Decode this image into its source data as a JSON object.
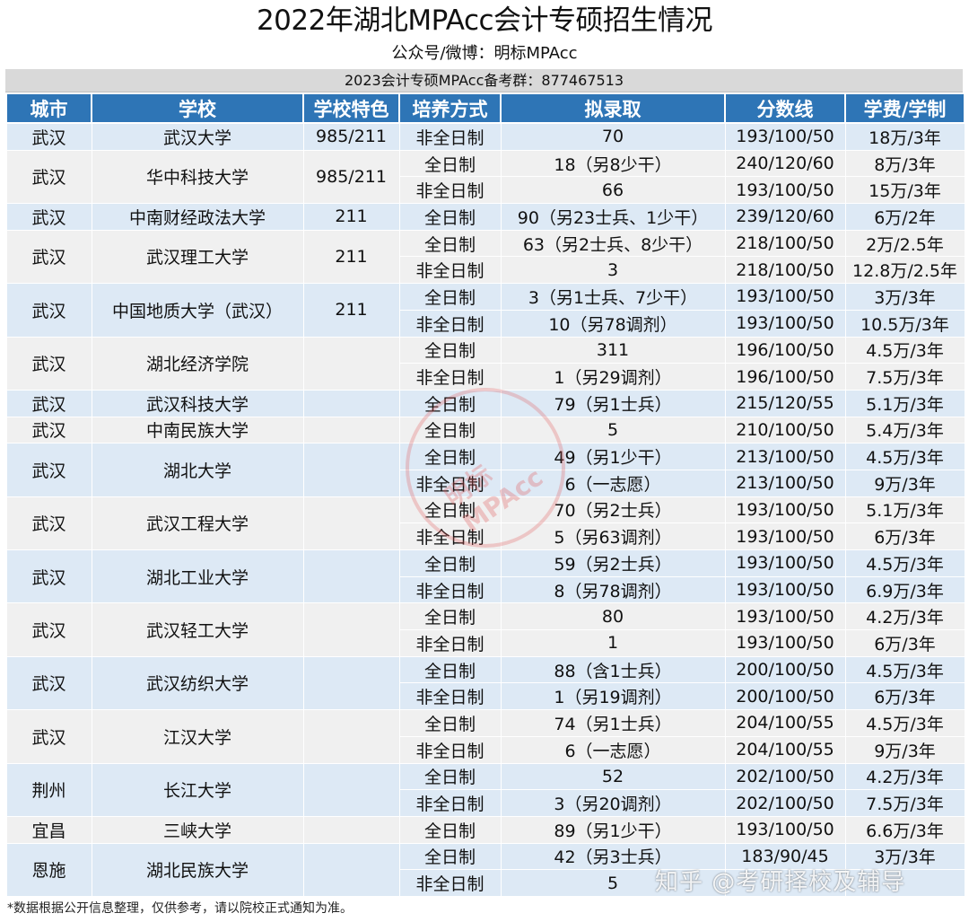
{
  "title": "2022年湖北MPAcc会计专硕招生情况",
  "subtitle": "公众号/微博：明标MPAcc",
  "group_line": "2023会计专硕MPAcc备考群：877467513",
  "headers": [
    "城市",
    "学校",
    "学校特色",
    "培养方式",
    "拟录取",
    "分数线",
    "学费/学制"
  ],
  "schools": [
    {
      "city": "武汉",
      "school": "武汉大学",
      "feature": "985/211",
      "rows": [
        {
          "mode": "非全日制",
          "admit": "70",
          "score": "193/100/50",
          "fee": "18万/3年"
        }
      ]
    },
    {
      "city": "武汉",
      "school": "华中科技大学",
      "feature": "985/211",
      "rows": [
        {
          "mode": "全日制",
          "admit": "18（另8少干）",
          "score": "240/120/60",
          "fee": "8万/3年"
        },
        {
          "mode": "非全日制",
          "admit": "66",
          "score": "193/100/50",
          "fee": "15万/3年"
        }
      ]
    },
    {
      "city": "武汉",
      "school": "中南财经政法大学",
      "feature": "211",
      "rows": [
        {
          "mode": "全日制",
          "admit": "90（另23士兵、1少干）",
          "score": "239/120/60",
          "fee": "6万/2年"
        }
      ]
    },
    {
      "city": "武汉",
      "school": "武汉理工大学",
      "feature": "211",
      "rows": [
        {
          "mode": "全日制",
          "admit": "63（另2士兵、8少干）",
          "score": "218/100/50",
          "fee": "2万/2.5年"
        },
        {
          "mode": "非全日制",
          "admit": "3",
          "score": "218/100/50",
          "fee": "12.8万/2.5年"
        }
      ]
    },
    {
      "city": "武汉",
      "school": "中国地质大学（武汉）",
      "feature": "211",
      "rows": [
        {
          "mode": "全日制",
          "admit": "3（另1士兵、7少干）",
          "score": "193/100/50",
          "fee": "3万/3年"
        },
        {
          "mode": "非全日制",
          "admit": "10（另78调剂）",
          "score": "193/100/50",
          "fee": "10.5万/3年"
        }
      ]
    },
    {
      "city": "武汉",
      "school": "湖北经济学院",
      "feature": "",
      "rows": [
        {
          "mode": "全日制",
          "admit": "311",
          "score": "196/100/50",
          "fee": "4.5万/3年"
        },
        {
          "mode": "非全日制",
          "admit": "1（另29调剂）",
          "score": "196/100/50",
          "fee": "7.5万/3年"
        }
      ]
    },
    {
      "city": "武汉",
      "school": "武汉科技大学",
      "feature": "",
      "rows": [
        {
          "mode": "全日制",
          "admit": "79（另1士兵）",
          "score": "215/120/55",
          "fee": "5.1万/3年"
        }
      ]
    },
    {
      "city": "武汉",
      "school": "中南民族大学",
      "feature": "",
      "rows": [
        {
          "mode": "全日制",
          "admit": "5",
          "score": "210/100/50",
          "fee": "5.4万/3年"
        }
      ]
    },
    {
      "city": "武汉",
      "school": "湖北大学",
      "feature": "",
      "rows": [
        {
          "mode": "全日制",
          "admit": "49（另1少干）",
          "score": "213/100/50",
          "fee": "4.5万/3年"
        },
        {
          "mode": "非全日制",
          "admit": "6（一志愿）",
          "score": "213/100/50",
          "fee": "9万/3年"
        }
      ]
    },
    {
      "city": "武汉",
      "school": "武汉工程大学",
      "feature": "",
      "rows": [
        {
          "mode": "全日制",
          "admit": "70（另2士兵）",
          "score": "193/100/50",
          "fee": "5.1万/3年"
        },
        {
          "mode": "非全日制",
          "admit": "5（另63调剂）",
          "score": "193/100/50",
          "fee": "6万/3年"
        }
      ]
    },
    {
      "city": "武汉",
      "school": "湖北工业大学",
      "feature": "",
      "rows": [
        {
          "mode": "全日制",
          "admit": "59（另2士兵）",
          "score": "193/100/50",
          "fee": "4.5万/3年"
        },
        {
          "mode": "非全日制",
          "admit": "8（另78调剂）",
          "score": "193/100/50",
          "fee": "6.9万/3年"
        }
      ]
    },
    {
      "city": "武汉",
      "school": "武汉轻工大学",
      "feature": "",
      "rows": [
        {
          "mode": "全日制",
          "admit": "80",
          "score": "193/100/50",
          "fee": "4.2万/3年"
        },
        {
          "mode": "非全日制",
          "admit": "1",
          "score": "193/100/50",
          "fee": "6万/3年"
        }
      ]
    },
    {
      "city": "武汉",
      "school": "武汉纺织大学",
      "feature": "",
      "rows": [
        {
          "mode": "全日制",
          "admit": "88（含1士兵）",
          "score": "200/100/50",
          "fee": "4.5万/3年"
        },
        {
          "mode": "非全日制",
          "admit": "1（另19调剂）",
          "score": "200/100/50",
          "fee": "6万/3年"
        }
      ]
    },
    {
      "city": "武汉",
      "school": "江汉大学",
      "feature": "",
      "rows": [
        {
          "mode": "全日制",
          "admit": "74（另1士兵）",
          "score": "204/100/55",
          "fee": "4.5万/3年"
        },
        {
          "mode": "非全日制",
          "admit": "6（一志愿）",
          "score": "204/100/55",
          "fee": "9万/3年"
        }
      ]
    },
    {
      "city": "荆州",
      "school": "长江大学",
      "feature": "",
      "rows": [
        {
          "mode": "全日制",
          "admit": "52",
          "score": "202/100/50",
          "fee": "4.2万/3年"
        },
        {
          "mode": "非全日制",
          "admit": "3（另20调剂）",
          "score": "202/100/50",
          "fee": "7.5万/3年"
        }
      ]
    },
    {
      "city": "宜昌",
      "school": "三峡大学",
      "feature": "",
      "rows": [
        {
          "mode": "全日制",
          "admit": "89（另1少干）",
          "score": "193/100/50",
          "fee": "6.6万/3年"
        }
      ]
    },
    {
      "city": "恩施",
      "school": "湖北民族大学",
      "feature": "",
      "rows": [
        {
          "mode": "全日制",
          "admit": "42（另3士兵）",
          "score": "183/90/45",
          "fee": "3万/3年"
        },
        {
          "mode": "非全日制",
          "admit": "5",
          "score": "",
          "fee": ""
        }
      ]
    }
  ],
  "footnote": "*数据根据公开信息整理，仅供参考，请以院校正式通知为准。",
  "stamp_text": "明标MPAcc",
  "watermark": "知乎 @考研择校及辅导",
  "colors": {
    "header_bg": "#2e75b6",
    "band_blue": "#dde9f5",
    "band_gray": "#f0f0f0"
  }
}
